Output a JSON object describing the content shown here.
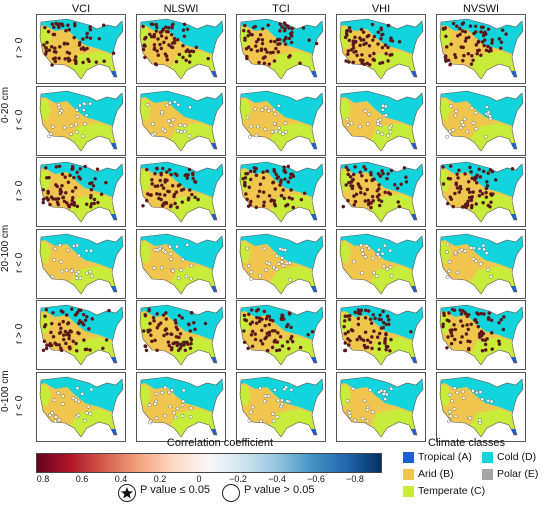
{
  "columns": [
    "VCI",
    "NLSWI",
    "TCI",
    "VHI",
    "NVSWI"
  ],
  "depths": [
    "0-20 cm",
    "20-100 cm",
    "0-100 cm"
  ],
  "row_labels": [
    "r > 0",
    "r < 0"
  ],
  "colorbar": {
    "title": "Correlation coefficient",
    "ticks": [
      "0.8",
      "0.6",
      "0.4",
      "0.2",
      "0",
      "−0.2",
      "−0.4",
      "−0.6",
      "−0.8"
    ]
  },
  "pvalue_legend": {
    "significant": "P value ≤ 0.05",
    "not_significant": "P value  >  0.05",
    "star_icon": "star-icon"
  },
  "climate_legend": {
    "title": "Climate classes",
    "classes": [
      {
        "label": "Tropical (A)",
        "color": "#1f5fd6"
      },
      {
        "label": "Cold (D)",
        "color": "#12d4dc"
      },
      {
        "label": "Arid (B)",
        "color": "#f0c64e"
      },
      {
        "label": "Polar (E)",
        "color": "#a6a6a6"
      },
      {
        "label": "Temperate (C)",
        "color": "#c9ec3a"
      }
    ]
  },
  "colors": {
    "tropical": "#1f5fd6",
    "cold": "#12d4dc",
    "arid": "#f0c64e",
    "temperate": "#c9ec3a",
    "positive_site": "#6a0e12",
    "negative_site": "#ffffff"
  }
}
